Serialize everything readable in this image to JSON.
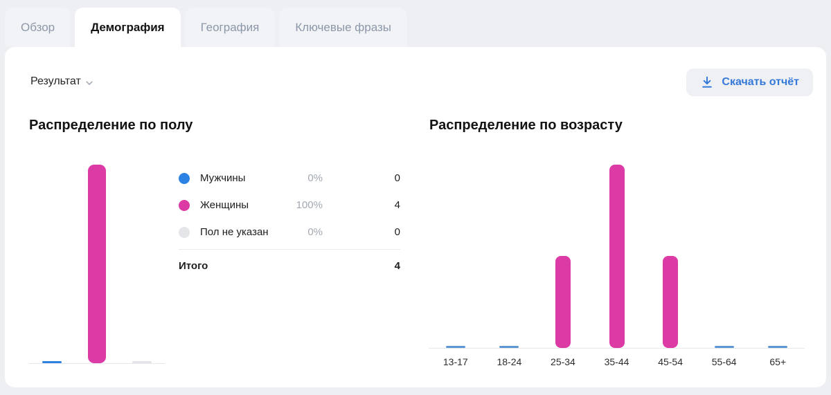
{
  "tabs": [
    {
      "label": "Обзор",
      "active": false
    },
    {
      "label": "Демография",
      "active": true
    },
    {
      "label": "География",
      "active": false
    },
    {
      "label": "Ключевые фразы",
      "active": false
    }
  ],
  "header": {
    "result_label": "Результат",
    "download_label": "Скачать отчёт"
  },
  "colors": {
    "accent_blue": "#3579d8",
    "male_blue": "#2b82e2",
    "female_pink": "#dc3ba5",
    "unspecified_gray": "#e3e5e8",
    "zero_dash_blue": "#5e96d2",
    "baseline_gray": "#e6e8ec",
    "page_background": "#edeff3"
  },
  "chart_data": [
    {
      "type": "bar",
      "title": "Распределение по полу",
      "categories": [
        "Мужчины",
        "Женщины",
        "Пол не указан"
      ],
      "values": [
        0,
        4,
        0
      ],
      "colors": [
        "#2b82e2",
        "#dc3ba5",
        "#e3e5e8"
      ],
      "ylim": [
        0,
        4
      ],
      "grid": false,
      "legend_position": "right",
      "legend": [
        {
          "label": "Мужчины",
          "percent": "0%",
          "count": "0",
          "color": "#2b82e2"
        },
        {
          "label": "Женщины",
          "percent": "100%",
          "count": "4",
          "color": "#dc3ba5"
        },
        {
          "label": "Пол не указан",
          "percent": "0%",
          "count": "0",
          "color": "#e3e5e8"
        }
      ],
      "total_label": "Итого",
      "total_value": "4"
    },
    {
      "type": "bar",
      "title": "Распределение по возрасту",
      "categories": [
        "13-17",
        "18-24",
        "25-34",
        "35-44",
        "45-54",
        "55-64",
        "65+"
      ],
      "values": [
        0,
        0,
        1,
        2,
        1,
        0,
        0
      ],
      "bar_color": "#dc3ba5",
      "zero_dash_color": "#5e96d2",
      "ylim": [
        0,
        2
      ],
      "grid": false,
      "legend_position": "none"
    }
  ]
}
